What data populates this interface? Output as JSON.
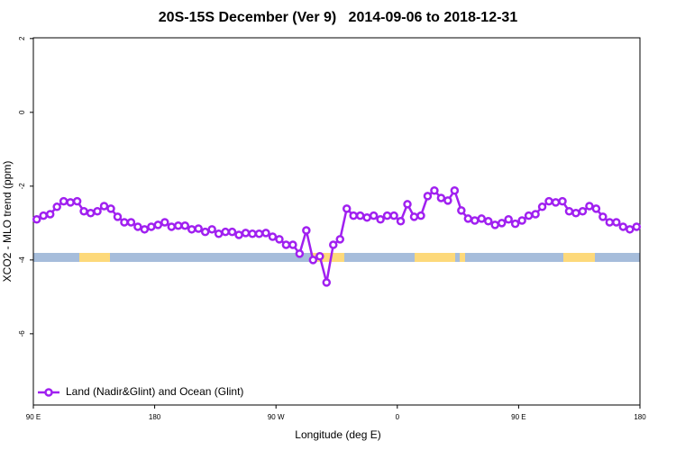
{
  "chart_data": {
    "type": "line",
    "title": "20S-15S December (Ver 9)   2014-09-06 to 2018-12-31",
    "x_label": "Longitude (deg E)",
    "y_label": "XCO2 - MLO trend (ppm)",
    "xlim": [
      90,
      540
    ],
    "ylim": [
      -7.93,
      2.02
    ],
    "xticks": [
      {
        "value": 90,
        "label": "90 E"
      },
      {
        "value": 180,
        "label": "180"
      },
      {
        "value": 270,
        "label": "90 W"
      },
      {
        "value": 360,
        "label": "0"
      },
      {
        "value": 450,
        "label": "90 E"
      },
      {
        "value": 540,
        "label": "180"
      }
    ],
    "yticks": [
      -6,
      -4,
      -2,
      0,
      2
    ],
    "legend": "bottom-left",
    "x": [
      92.5,
      97.5,
      102.5,
      107.5,
      112.5,
      117.5,
      122.5,
      127.5,
      132.5,
      137.5,
      142.5,
      147.5,
      152.5,
      157.5,
      162.5,
      167.5,
      172.5,
      177.5,
      182.5,
      187.5,
      192.5,
      197.5,
      202.5,
      207.5,
      212.5,
      217.5,
      222.5,
      227.5,
      232.5,
      237.5,
      242.5,
      247.5,
      252.5,
      257.5,
      262.5,
      267.5,
      272.5,
      277.5,
      282.5,
      287.5,
      292.5,
      297.5,
      302.5,
      307.5,
      312.5,
      317.5,
      322.5,
      327.5,
      332.5,
      337.5,
      342.5,
      347.5,
      352.5,
      357.5,
      362.5,
      367.5,
      372.5,
      377.5,
      382.5,
      387.5,
      392.5,
      397.5,
      402.5,
      407.5,
      412.5,
      417.5,
      422.5,
      427.5,
      432.5,
      437.5,
      442.5,
      447.5,
      452.5,
      457.5,
      462.5,
      467.5,
      472.5,
      477.5,
      482.5,
      487.5,
      492.5,
      497.5,
      502.5,
      507.5,
      512.5,
      517.5,
      522.5,
      527.5,
      532.5,
      537.5
    ],
    "series": [
      {
        "name": "Land (Nadir&Glint) and Ocean (Glint)",
        "color": "#a020f0",
        "values": [
          -2.9,
          -2.8,
          -2.76,
          -2.56,
          -2.41,
          -2.44,
          -2.41,
          -2.68,
          -2.73,
          -2.68,
          -2.54,
          -2.61,
          -2.83,
          -2.98,
          -2.98,
          -3.1,
          -3.17,
          -3.1,
          -3.05,
          -2.98,
          -3.1,
          -3.07,
          -3.07,
          -3.17,
          -3.15,
          -3.24,
          -3.17,
          -3.29,
          -3.24,
          -3.24,
          -3.32,
          -3.27,
          -3.29,
          -3.29,
          -3.27,
          -3.37,
          -3.44,
          -3.59,
          -3.59,
          -3.83,
          -3.2,
          -4.0,
          -3.9,
          -4.61,
          -3.59,
          -3.44,
          -2.61,
          -2.8,
          -2.8,
          -2.85,
          -2.8,
          -2.9,
          -2.8,
          -2.8,
          -2.95,
          -2.49,
          -2.83,
          -2.8,
          -2.27,
          -2.12,
          -2.32,
          -2.39,
          -2.12,
          -2.66,
          -2.88,
          -2.93,
          -2.88,
          -2.95,
          -3.05,
          -3.0,
          -2.9,
          -3.02,
          -2.93,
          -2.8,
          -2.76,
          -2.56,
          -2.41,
          -2.44,
          -2.41,
          -2.68,
          -2.73,
          -2.68,
          -2.54,
          -2.61,
          -2.83,
          -2.98,
          -2.98,
          -3.1,
          -3.17,
          -3.1
        ]
      }
    ]
  }
}
